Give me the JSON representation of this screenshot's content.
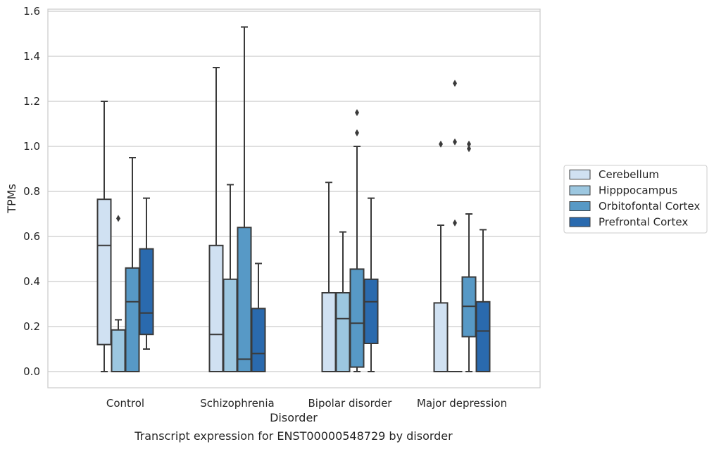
{
  "caption": "Transcript expression for ENST00000548729 by disorder",
  "chart_data": {
    "type": "box",
    "title": "",
    "xlabel": "Disorder",
    "ylabel": "TPMs",
    "ylim": [
      -0.07,
      1.61
    ],
    "yticks": [
      0.0,
      0.2,
      0.4,
      0.6,
      0.8,
      1.0,
      1.2,
      1.4,
      1.6
    ],
    "ytick_labels": [
      "0.0",
      "0.2",
      "0.4",
      "0.6",
      "0.8",
      "1.0",
      "1.2",
      "1.4",
      "1.6"
    ],
    "grid": "horizontal",
    "legend_position": "right",
    "categories": [
      "Control",
      "Schizophrenia",
      "Bipolar disorder",
      "Major depression"
    ],
    "series": [
      {
        "name": "Cerebellum",
        "color": "#d0e1f2",
        "boxes": [
          {
            "whislo": 0.0,
            "q1": 0.12,
            "med": 0.56,
            "q3": 0.765,
            "whishi": 1.2,
            "fliers": []
          },
          {
            "whislo": 0.0,
            "q1": 0.0,
            "med": 0.165,
            "q3": 0.56,
            "whishi": 1.35,
            "fliers": []
          },
          {
            "whislo": 0.0,
            "q1": 0.0,
            "med": 0.0,
            "q3": 0.35,
            "whishi": 0.84,
            "fliers": []
          },
          {
            "whislo": 0.0,
            "q1": 0.0,
            "med": 0.0,
            "q3": 0.305,
            "whishi": 0.65,
            "fliers": [
              1.01
            ]
          }
        ]
      },
      {
        "name": "Hipppocampus",
        "color": "#9cc7e0",
        "boxes": [
          {
            "whislo": 0.0,
            "q1": 0.0,
            "med": 0.0,
            "q3": 0.185,
            "whishi": 0.23,
            "fliers": [
              0.68
            ]
          },
          {
            "whislo": 0.0,
            "q1": 0.0,
            "med": 0.0,
            "q3": 0.41,
            "whishi": 0.83,
            "fliers": []
          },
          {
            "whislo": 0.0,
            "q1": 0.0,
            "med": 0.235,
            "q3": 0.35,
            "whishi": 0.62,
            "fliers": []
          },
          {
            "whislo": 0.0,
            "q1": 0.0,
            "med": 0.0,
            "q3": 0.0,
            "whishi": 0.0,
            "fliers": [
              1.28,
              1.02,
              0.66
            ]
          }
        ]
      },
      {
        "name": "Orbitofontal Cortex",
        "color": "#5799c6",
        "boxes": [
          {
            "whislo": 0.0,
            "q1": 0.0,
            "med": 0.31,
            "q3": 0.46,
            "whishi": 0.95,
            "fliers": []
          },
          {
            "whislo": 0.0,
            "q1": 0.0,
            "med": 0.055,
            "q3": 0.64,
            "whishi": 1.53,
            "fliers": []
          },
          {
            "whislo": 0.0,
            "q1": 0.02,
            "med": 0.215,
            "q3": 0.455,
            "whishi": 1.0,
            "fliers": [
              1.15,
              1.06
            ]
          },
          {
            "whislo": 0.0,
            "q1": 0.155,
            "med": 0.29,
            "q3": 0.42,
            "whishi": 0.7,
            "fliers": [
              1.01,
              0.99
            ]
          }
        ]
      },
      {
        "name": "Prefrontal Cortex",
        "color": "#2a6aae",
        "boxes": [
          {
            "whislo": 0.1,
            "q1": 0.165,
            "med": 0.26,
            "q3": 0.545,
            "whishi": 0.77,
            "fliers": []
          },
          {
            "whislo": 0.0,
            "q1": 0.0,
            "med": 0.08,
            "q3": 0.28,
            "whishi": 0.48,
            "fliers": []
          },
          {
            "whislo": 0.0,
            "q1": 0.125,
            "med": 0.31,
            "q3": 0.41,
            "whishi": 0.77,
            "fliers": []
          },
          {
            "whislo": 0.0,
            "q1": 0.0,
            "med": 0.18,
            "q3": 0.31,
            "whishi": 0.63,
            "fliers": []
          }
        ]
      }
    ]
  }
}
